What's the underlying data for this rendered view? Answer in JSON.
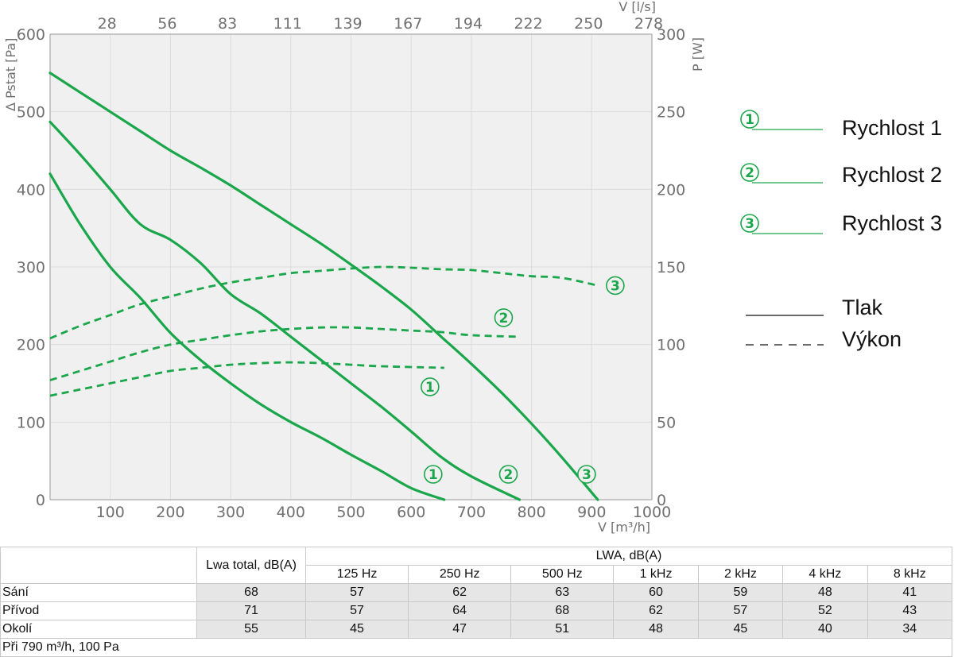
{
  "chart_data": {
    "type": "line",
    "ylabel": "Δ Pstat [Pa]",
    "y2label": "P [W]",
    "xlabel": "V [m³/h]",
    "x2label": "V [l/s]",
    "xlim": [
      0,
      1000
    ],
    "ylim": [
      0,
      600
    ],
    "y2lim": [
      0,
      300
    ],
    "x_ticks": [
      "100",
      "200",
      "300",
      "400",
      "500",
      "600",
      "700",
      "800",
      "900",
      "1000"
    ],
    "y_ticks": [
      "0",
      "100",
      "200",
      "300",
      "400",
      "500",
      "600"
    ],
    "y2_ticks": [
      "0",
      "50",
      "100",
      "150",
      "200",
      "250",
      "300"
    ],
    "x2_ticks": [
      "28",
      "56",
      "83",
      "111",
      "139",
      "167",
      "194",
      "222",
      "250",
      "278"
    ],
    "grid": true,
    "line_color": "#1aa64a",
    "pressure_series": [
      {
        "name": "Rychlost 1",
        "marker": "1",
        "x": [
          0,
          50,
          100,
          150,
          200,
          250,
          300,
          350,
          400,
          450,
          500,
          550,
          600,
          655
        ],
        "y": [
          420,
          355,
          300,
          260,
          215,
          180,
          150,
          123,
          100,
          80,
          58,
          37,
          15,
          0
        ]
      },
      {
        "name": "Rychlost 2",
        "marker": "2",
        "x": [
          0,
          50,
          100,
          150,
          200,
          250,
          300,
          350,
          400,
          450,
          500,
          550,
          600,
          650,
          700,
          780
        ],
        "y": [
          487,
          445,
          400,
          355,
          335,
          305,
          265,
          240,
          210,
          180,
          150,
          120,
          88,
          55,
          30,
          0
        ]
      },
      {
        "name": "Rychlost 3",
        "marker": "3",
        "x": [
          0,
          50,
          100,
          150,
          200,
          250,
          300,
          350,
          400,
          450,
          500,
          550,
          600,
          650,
          700,
          750,
          800,
          850,
          910
        ],
        "y": [
          550,
          525,
          500,
          475,
          450,
          428,
          405,
          380,
          355,
          330,
          303,
          275,
          245,
          210,
          175,
          138,
          98,
          55,
          0
        ]
      }
    ],
    "power_series": [
      {
        "name": "Rychlost 1",
        "marker": "1",
        "x": [
          0,
          50,
          100,
          150,
          200,
          250,
          300,
          350,
          400,
          450,
          500,
          550,
          655
        ],
        "y": [
          67,
          71,
          75,
          79,
          83,
          85,
          87,
          88,
          88.5,
          88,
          87,
          86,
          85
        ]
      },
      {
        "name": "Rychlost 2",
        "marker": "2",
        "x": [
          0,
          50,
          100,
          150,
          200,
          250,
          300,
          350,
          400,
          450,
          500,
          550,
          600,
          650,
          700,
          780
        ],
        "y": [
          77,
          83,
          89,
          95,
          100,
          103,
          106,
          108.5,
          110,
          111,
          111,
          110,
          109,
          108,
          106,
          105
        ]
      },
      {
        "name": "Rychlost 3",
        "marker": "3",
        "x": [
          0,
          50,
          100,
          150,
          200,
          250,
          300,
          350,
          400,
          450,
          500,
          550,
          600,
          650,
          700,
          750,
          800,
          850,
          910
        ],
        "y": [
          104,
          112,
          119,
          126,
          131,
          136,
          140,
          143,
          146,
          147.5,
          149,
          150,
          149.5,
          148.5,
          148,
          146,
          144,
          143,
          138
        ]
      }
    ],
    "legend": {
      "speeds": [
        {
          "marker": "1",
          "label": "Rychlost 1"
        },
        {
          "marker": "2",
          "label": "Rychlost 2"
        },
        {
          "marker": "3",
          "label": "Rychlost 3"
        }
      ],
      "styles": [
        {
          "style": "solid",
          "label": "Tlak"
        },
        {
          "style": "dashed",
          "label": "Výkon"
        }
      ]
    }
  },
  "noise_table": {
    "col_total": "Lwa total, dB(A)",
    "col_group": "LWA, dB(A)",
    "bands": [
      "125 Hz",
      "250 Hz",
      "500 Hz",
      "1 kHz",
      "2 kHz",
      "4 kHz",
      "8 kHz"
    ],
    "rows": [
      {
        "label": "Sání",
        "total": "68",
        "values": [
          "57",
          "62",
          "63",
          "60",
          "59",
          "48",
          "41"
        ]
      },
      {
        "label": "Přívod",
        "total": "71",
        "values": [
          "57",
          "64",
          "68",
          "62",
          "57",
          "52",
          "43"
        ]
      },
      {
        "label": "Okolí",
        "total": "55",
        "values": [
          "45",
          "47",
          "51",
          "48",
          "45",
          "40",
          "34"
        ]
      }
    ],
    "footnote": "Při 790 m³/h, 100 Pa"
  }
}
